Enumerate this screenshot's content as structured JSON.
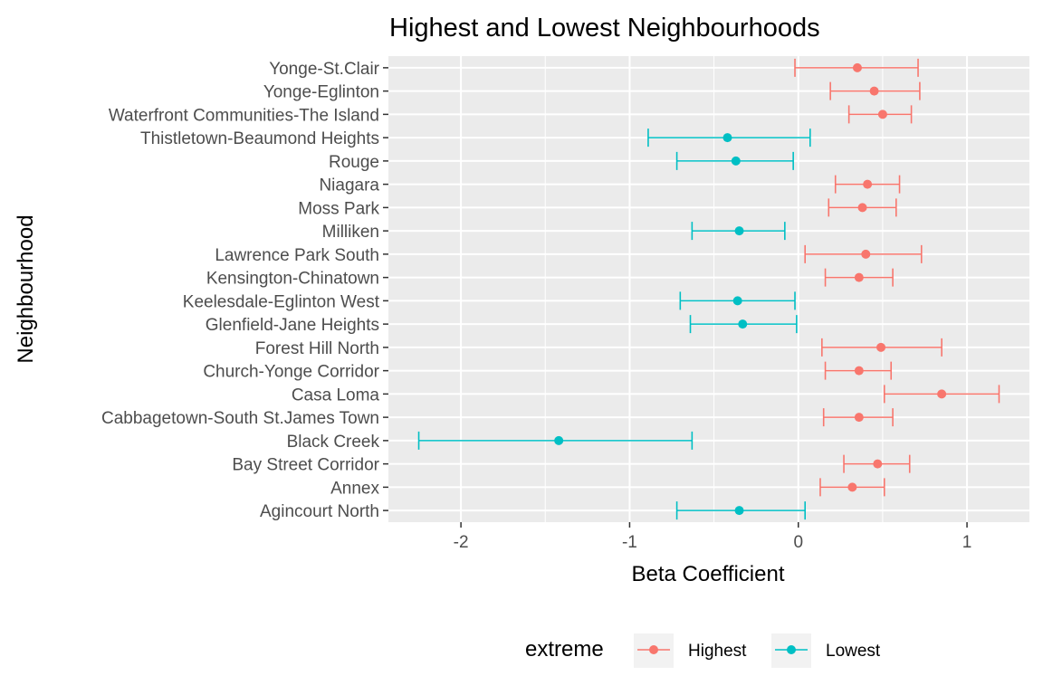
{
  "chart_data": {
    "type": "errorbar",
    "title": "Highest and Lowest Neighbourhoods",
    "xlabel": "Beta Coefficient",
    "ylabel": "Neighbourhood",
    "xlim": [
      -2.43,
      1.37
    ],
    "xticks": [
      -2,
      -1,
      0,
      1
    ],
    "grid": true,
    "legend": {
      "title": "extreme",
      "position": "bottom",
      "entries": [
        {
          "name": "Highest",
          "color": "#F8766D"
        },
        {
          "name": "Lowest",
          "color": "#00BFC4"
        }
      ]
    },
    "categories": [
      "Agincourt North",
      "Annex",
      "Bay Street Corridor",
      "Black Creek",
      "Cabbagetown-South St.James Town",
      "Casa Loma",
      "Church-Yonge Corridor",
      "Forest Hill North",
      "Glenfield-Jane Heights",
      "Keelesdale-Eglinton West",
      "Kensington-Chinatown",
      "Lawrence Park South",
      "Milliken",
      "Moss Park",
      "Niagara",
      "Rouge",
      "Thistletown-Beaumond Heights",
      "Waterfront Communities-The Island",
      "Yonge-Eglinton",
      "Yonge-St.Clair"
    ],
    "points": [
      {
        "category": "Agincourt North",
        "group": "Lowest",
        "estimate": -0.35,
        "lower": -0.72,
        "upper": 0.04
      },
      {
        "category": "Annex",
        "group": "Highest",
        "estimate": 0.32,
        "lower": 0.13,
        "upper": 0.51
      },
      {
        "category": "Bay Street Corridor",
        "group": "Highest",
        "estimate": 0.47,
        "lower": 0.27,
        "upper": 0.66
      },
      {
        "category": "Black Creek",
        "group": "Lowest",
        "estimate": -1.42,
        "lower": -2.25,
        "upper": -0.63
      },
      {
        "category": "Cabbagetown-South St.James Town",
        "group": "Highest",
        "estimate": 0.36,
        "lower": 0.15,
        "upper": 0.56
      },
      {
        "category": "Casa Loma",
        "group": "Highest",
        "estimate": 0.85,
        "lower": 0.51,
        "upper": 1.19
      },
      {
        "category": "Church-Yonge Corridor",
        "group": "Highest",
        "estimate": 0.36,
        "lower": 0.16,
        "upper": 0.55
      },
      {
        "category": "Forest Hill North",
        "group": "Highest",
        "estimate": 0.49,
        "lower": 0.14,
        "upper": 0.85
      },
      {
        "category": "Glenfield-Jane Heights",
        "group": "Lowest",
        "estimate": -0.33,
        "lower": -0.64,
        "upper": -0.01
      },
      {
        "category": "Keelesdale-Eglinton West",
        "group": "Lowest",
        "estimate": -0.36,
        "lower": -0.7,
        "upper": -0.02
      },
      {
        "category": "Kensington-Chinatown",
        "group": "Highest",
        "estimate": 0.36,
        "lower": 0.16,
        "upper": 0.56
      },
      {
        "category": "Lawrence Park South",
        "group": "Highest",
        "estimate": 0.4,
        "lower": 0.04,
        "upper": 0.73
      },
      {
        "category": "Milliken",
        "group": "Lowest",
        "estimate": -0.35,
        "lower": -0.63,
        "upper": -0.08
      },
      {
        "category": "Moss Park",
        "group": "Highest",
        "estimate": 0.38,
        "lower": 0.18,
        "upper": 0.58
      },
      {
        "category": "Niagara",
        "group": "Highest",
        "estimate": 0.41,
        "lower": 0.22,
        "upper": 0.6
      },
      {
        "category": "Rouge",
        "group": "Lowest",
        "estimate": -0.37,
        "lower": -0.72,
        "upper": -0.03
      },
      {
        "category": "Thistletown-Beaumond Heights",
        "group": "Lowest",
        "estimate": -0.42,
        "lower": -0.89,
        "upper": 0.07
      },
      {
        "category": "Waterfront Communities-The Island",
        "group": "Highest",
        "estimate": 0.5,
        "lower": 0.3,
        "upper": 0.67
      },
      {
        "category": "Yonge-Eglinton",
        "group": "Highest",
        "estimate": 0.45,
        "lower": 0.19,
        "upper": 0.72
      },
      {
        "category": "Yonge-St.Clair",
        "group": "Highest",
        "estimate": 0.35,
        "lower": -0.02,
        "upper": 0.71
      }
    ]
  }
}
